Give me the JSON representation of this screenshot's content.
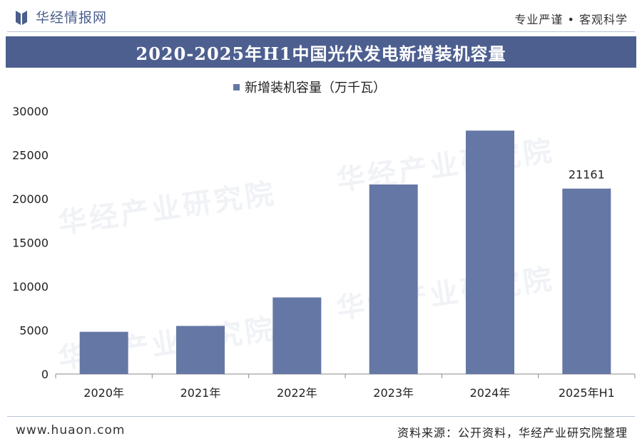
{
  "header": {
    "brand_name": "华经情报网",
    "slogan": "专业严谨 • 客观科学"
  },
  "title": "2020-2025年H1中国光伏发电新增装机容量",
  "colors": {
    "bar": "#6577a5",
    "title_band": "#4d5f8f",
    "brand": "#4b5e8c"
  },
  "footer": {
    "url": "www.huaon.com",
    "source": "资料来源：公开资料，华经产业研究院整理"
  },
  "watermarks": [
    "华经产业研究院",
    "华经产业研究院",
    "华经产业研究院",
    "华经产业研究院"
  ],
  "chart_data": {
    "type": "bar",
    "title": "2020-2025年H1中国光伏发电新增装机容量",
    "categories": [
      "2020年",
      "2021年",
      "2022年",
      "2023年",
      "2024年",
      "2025年H1"
    ],
    "series": [
      {
        "name": "新增装机容量（万千瓦）",
        "values": [
          4820,
          5488,
          8741,
          21630,
          27780,
          21161
        ]
      }
    ],
    "data_labels": [
      {
        "category": "2025年H1",
        "value": "21161"
      }
    ],
    "ylim": [
      0,
      30000
    ],
    "yticks": [
      0,
      5000,
      10000,
      15000,
      20000,
      25000,
      30000
    ],
    "legend_position": "top-center",
    "grid": false
  }
}
